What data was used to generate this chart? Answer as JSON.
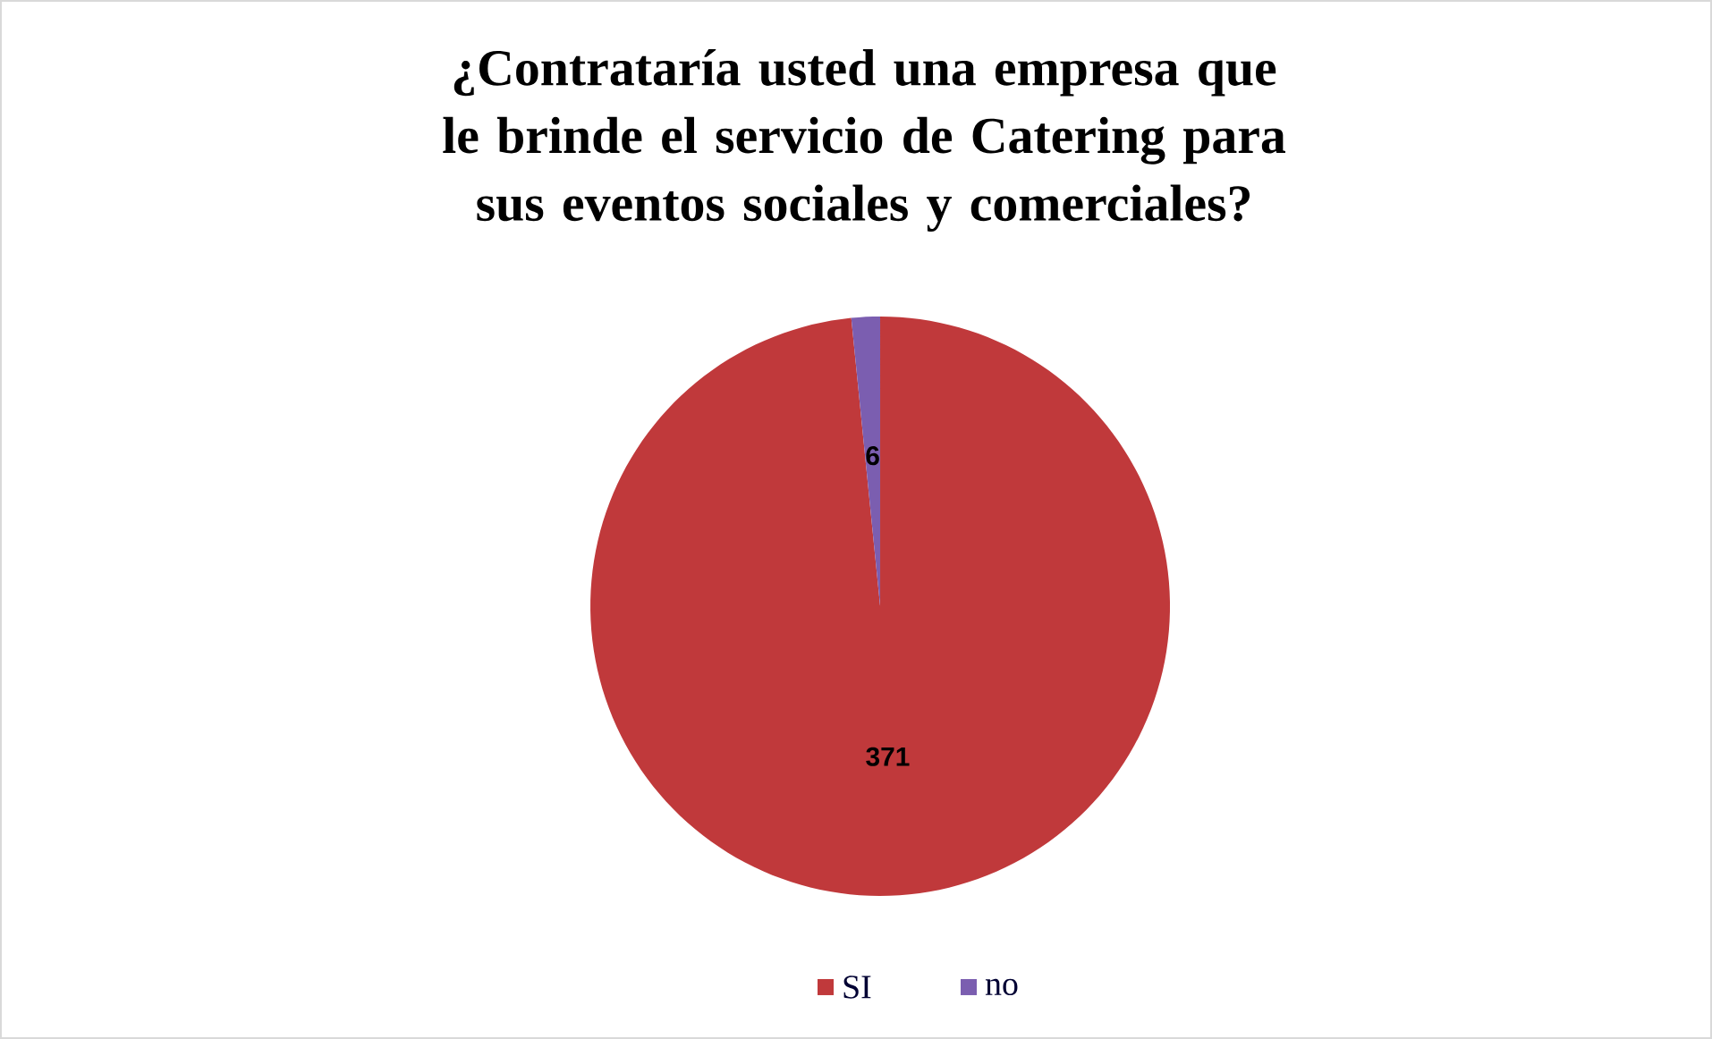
{
  "chart_data": {
    "type": "pie",
    "title": "¿Contrataría usted una empresa que le brinde el servicio de Catering para sus eventos sociales y comerciales?",
    "categories": [
      "SI",
      "no"
    ],
    "values": [
      371,
      6
    ],
    "colors": [
      "#c0393b",
      "#7b5eb0"
    ],
    "data_labels": true,
    "legend": "bottom"
  }
}
